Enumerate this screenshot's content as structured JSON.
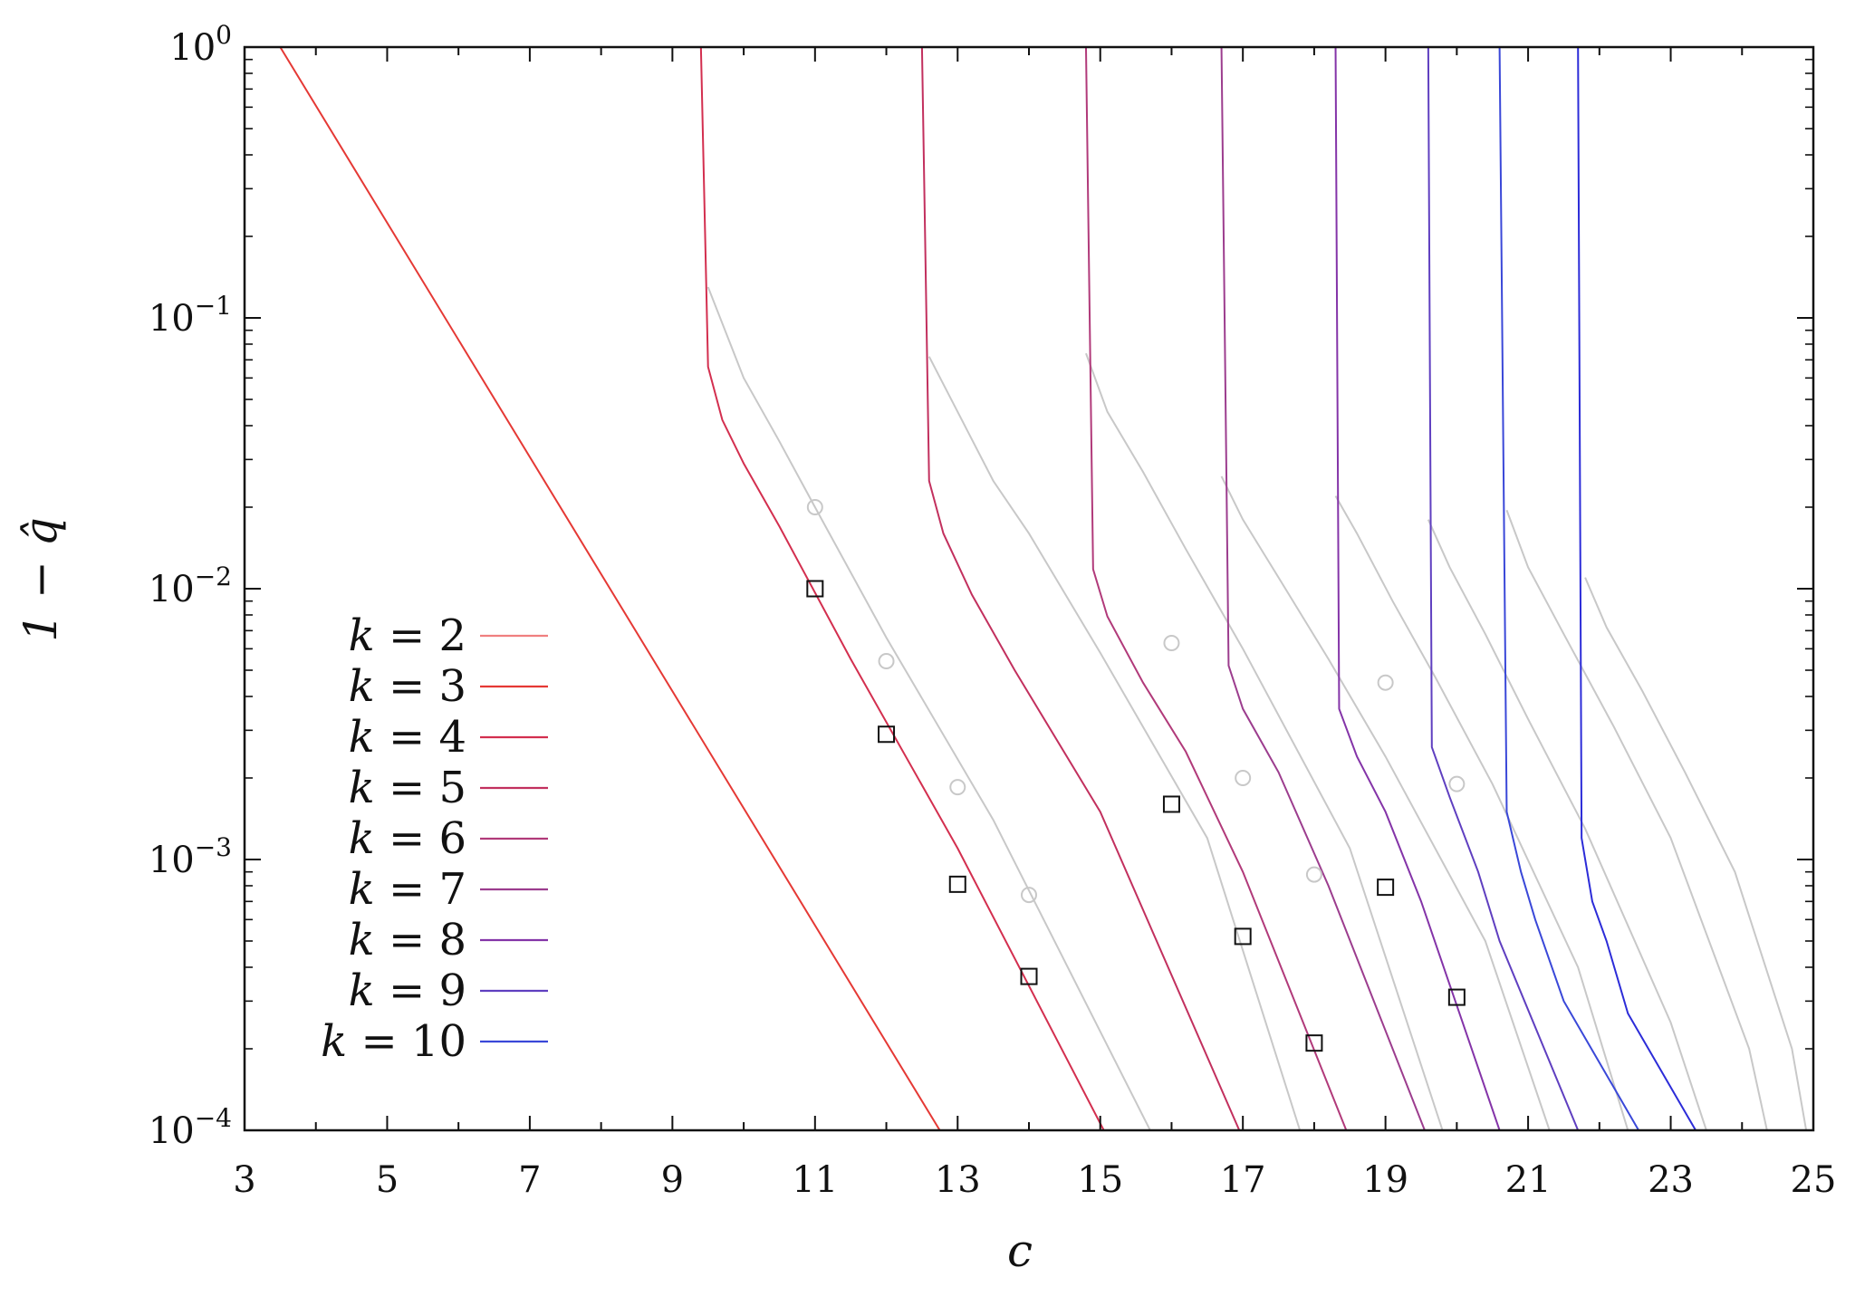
{
  "chart_data": {
    "type": "line",
    "title": "",
    "xlabel": "c",
    "ylabel": "1 − q̂",
    "xlim": [
      3,
      25
    ],
    "ylim": [
      0.0001,
      1
    ],
    "yscale": "log",
    "grid": false,
    "legend_position": "lower-left",
    "x_ticks": [
      "3",
      "5",
      "7",
      "9",
      "11",
      "13",
      "15",
      "17",
      "19",
      "21",
      "23",
      "25"
    ],
    "y_ticks": [
      {
        "value": 1,
        "base": "10",
        "exp": "0"
      },
      {
        "value": 0.1,
        "base": "10",
        "exp": "−1"
      },
      {
        "value": 0.01,
        "base": "10",
        "exp": "−2"
      },
      {
        "value": 0.001,
        "base": "10",
        "exp": "−3"
      },
      {
        "value": 0.0001,
        "base": "10",
        "exp": "−4"
      }
    ],
    "series": [
      {
        "name": "k = 2",
        "k": "2",
        "color": "#f07f7f",
        "points": []
      },
      {
        "name": "k = 3",
        "k": "3",
        "color": "#e53935",
        "points": [
          [
            3.4,
            1
          ],
          [
            3.5,
            1
          ],
          [
            12.75,
            0.0001
          ]
        ]
      },
      {
        "name": "k = 4",
        "k": "4",
        "color": "#d32f4f",
        "points": [
          [
            9.4,
            1
          ],
          [
            9.5,
            0.066
          ],
          [
            9.7,
            0.042
          ],
          [
            10.0,
            0.029
          ],
          [
            10.5,
            0.017
          ],
          [
            11.5,
            0.0055
          ],
          [
            13.0,
            0.0011
          ],
          [
            15.05,
            0.0001
          ]
        ]
      },
      {
        "name": "k = 5",
        "k": "5",
        "color": "#c2305e",
        "points": [
          [
            12.5,
            1
          ],
          [
            12.6,
            0.025
          ],
          [
            12.8,
            0.016
          ],
          [
            13.2,
            0.0095
          ],
          [
            13.8,
            0.005
          ],
          [
            15.0,
            0.0015
          ],
          [
            16.95,
            0.0001
          ]
        ]
      },
      {
        "name": "k = 6",
        "k": "6",
        "color": "#b13a7a",
        "points": [
          [
            14.8,
            1
          ],
          [
            14.9,
            0.0118
          ],
          [
            15.1,
            0.0079
          ],
          [
            15.6,
            0.0045
          ],
          [
            16.2,
            0.0025
          ],
          [
            17.0,
            0.0009
          ],
          [
            18.45,
            0.0001
          ]
        ]
      },
      {
        "name": "k = 7",
        "k": "7",
        "color": "#9c3d8e",
        "points": [
          [
            16.7,
            1
          ],
          [
            16.8,
            0.0052
          ],
          [
            17.0,
            0.0036
          ],
          [
            17.5,
            0.0021
          ],
          [
            18.2,
            0.0008
          ],
          [
            19.55,
            0.0001
          ]
        ]
      },
      {
        "name": "k = 8",
        "k": "8",
        "color": "#8434a8",
        "points": [
          [
            18.3,
            1
          ],
          [
            18.35,
            0.0036
          ],
          [
            18.6,
            0.0024
          ],
          [
            19.0,
            0.0015
          ],
          [
            19.5,
            0.0007
          ],
          [
            20.6,
            0.0001
          ]
        ]
      },
      {
        "name": "k = 9",
        "k": "9",
        "color": "#5f3fc0",
        "points": [
          [
            19.6,
            1
          ],
          [
            19.65,
            0.0026
          ],
          [
            19.9,
            0.0017
          ],
          [
            20.3,
            0.0009
          ],
          [
            20.6,
            0.0005
          ],
          [
            21.7,
            0.0001
          ]
        ]
      },
      {
        "name": "k = 10",
        "k": "10",
        "color": "#3a48d8",
        "points": [
          [
            20.6,
            1
          ],
          [
            20.7,
            0.0015
          ],
          [
            20.9,
            0.0009
          ],
          [
            21.1,
            0.0006
          ],
          [
            21.5,
            0.0003
          ],
          [
            22.55,
            0.0001
          ]
        ]
      },
      {
        "name": "",
        "k": "11",
        "color": "#2c2cd8",
        "points": [
          [
            21.7,
            1
          ],
          [
            21.75,
            0.0012
          ],
          [
            21.9,
            0.0007
          ],
          [
            22.1,
            0.0005
          ],
          [
            22.4,
            0.00027
          ],
          [
            23.35,
            0.0001
          ]
        ]
      }
    ],
    "gray_curves": [
      {
        "points": [
          [
            9.5,
            0.13
          ],
          [
            10.0,
            0.06
          ],
          [
            10.5,
            0.035
          ],
          [
            11.0,
            0.02
          ],
          [
            12.0,
            0.0066
          ],
          [
            13.5,
            0.0014
          ],
          [
            15.7,
            0.0001
          ]
        ]
      },
      {
        "points": [
          [
            12.6,
            0.072
          ],
          [
            13.0,
            0.045
          ],
          [
            13.5,
            0.025
          ],
          [
            14.0,
            0.016
          ],
          [
            15.0,
            0.0058
          ],
          [
            16.5,
            0.0012
          ],
          [
            17.8,
            0.0001
          ]
        ]
      },
      {
        "points": [
          [
            14.8,
            0.074
          ],
          [
            15.1,
            0.045
          ],
          [
            15.6,
            0.027
          ],
          [
            16.2,
            0.014
          ],
          [
            17.0,
            0.006
          ],
          [
            18.5,
            0.0011
          ],
          [
            19.8,
            0.0001
          ]
        ]
      },
      {
        "points": [
          [
            16.7,
            0.026
          ],
          [
            17.0,
            0.018
          ],
          [
            17.5,
            0.011
          ],
          [
            18.2,
            0.0055
          ],
          [
            19.0,
            0.0024
          ],
          [
            20.4,
            0.0005
          ],
          [
            21.3,
            0.0001
          ]
        ]
      },
      {
        "points": [
          [
            18.3,
            0.022
          ],
          [
            18.6,
            0.016
          ],
          [
            19.1,
            0.009
          ],
          [
            19.7,
            0.0047
          ],
          [
            20.5,
            0.0019
          ],
          [
            21.7,
            0.0004
          ],
          [
            22.4,
            0.0001
          ]
        ]
      },
      {
        "points": [
          [
            19.6,
            0.018
          ],
          [
            19.9,
            0.012
          ],
          [
            20.4,
            0.0068
          ],
          [
            21.0,
            0.0033
          ],
          [
            21.8,
            0.0013
          ],
          [
            23.0,
            0.00025
          ],
          [
            23.5,
            0.0001
          ]
        ]
      },
      {
        "points": [
          [
            20.7,
            0.0195
          ],
          [
            21.0,
            0.012
          ],
          [
            21.5,
            0.0068
          ],
          [
            22.2,
            0.0031
          ],
          [
            23.0,
            0.0012
          ],
          [
            24.1,
            0.0002
          ],
          [
            24.35,
            0.0001
          ]
        ]
      },
      {
        "points": [
          [
            21.8,
            0.011
          ],
          [
            22.1,
            0.0072
          ],
          [
            22.6,
            0.0042
          ],
          [
            23.2,
            0.0021
          ],
          [
            23.9,
            0.0009
          ],
          [
            24.7,
            0.0002
          ],
          [
            24.9,
            0.0001
          ]
        ]
      }
    ],
    "circles": [
      [
        11,
        0.02
      ],
      [
        12,
        0.0054
      ],
      [
        13,
        0.00185
      ],
      [
        14,
        0.00074
      ],
      [
        16,
        0.0063
      ],
      [
        17,
        0.002
      ],
      [
        18,
        0.00088
      ],
      [
        19,
        0.0045
      ],
      [
        20,
        0.0019
      ]
    ],
    "squares": [
      [
        11,
        0.01
      ],
      [
        12,
        0.0029
      ],
      [
        13,
        0.00081
      ],
      [
        14,
        0.00037
      ],
      [
        16,
        0.0016
      ],
      [
        17,
        0.00052
      ],
      [
        18,
        0.00021
      ],
      [
        19,
        0.00079
      ],
      [
        20,
        0.00031
      ]
    ],
    "colors": {
      "frame": "#111111",
      "gray": "#c8c8c8",
      "marker_circle": "#c8c8c8",
      "marker_square": "#111111"
    }
  }
}
